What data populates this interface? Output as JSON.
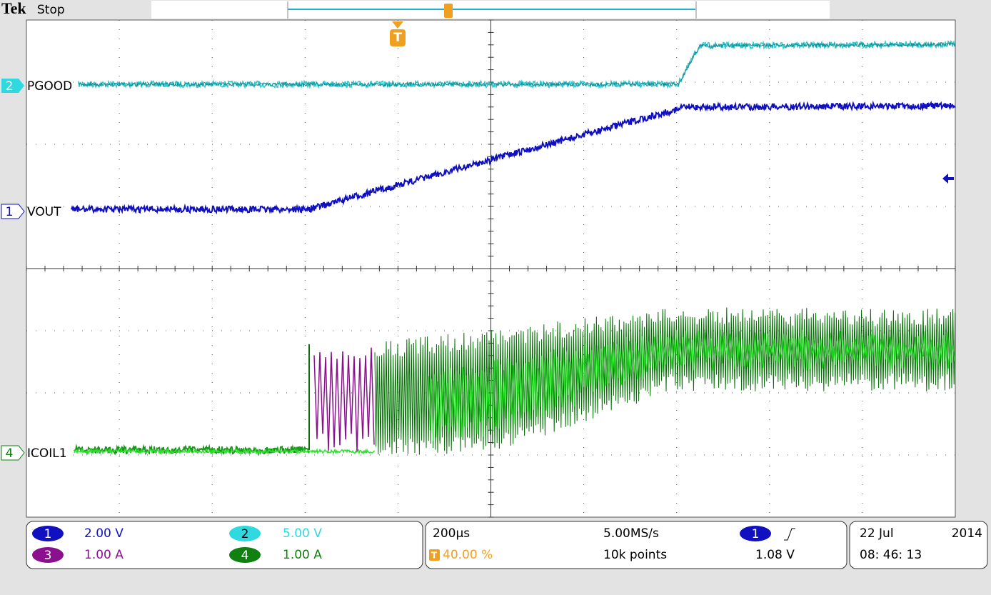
{
  "header": {
    "brand": "Tek",
    "status": "Stop"
  },
  "trigger_marker": "T",
  "channels": [
    {
      "marker": "2",
      "label": "PGOOD"
    },
    {
      "marker": "1",
      "label": "VOUT"
    },
    {
      "marker": "4",
      "label": "ICOIL1"
    }
  ],
  "scales": [
    {
      "channel": "1",
      "value": "2.00 V"
    },
    {
      "channel": "3",
      "value": "1.00 A"
    },
    {
      "channel": "2",
      "value": "5.00 V"
    },
    {
      "channel": "4",
      "value": "1.00 A"
    }
  ],
  "timebase": {
    "horizontal": "200µs",
    "trigger_position": "40.00 %",
    "sample_rate": "5.00MS/s",
    "record_length": "10k points",
    "trigger_source": "1",
    "trigger_level": "1.08 V"
  },
  "timestamp": {
    "date": "22 Jul",
    "year": "2014",
    "time": "08: 46: 13"
  }
}
